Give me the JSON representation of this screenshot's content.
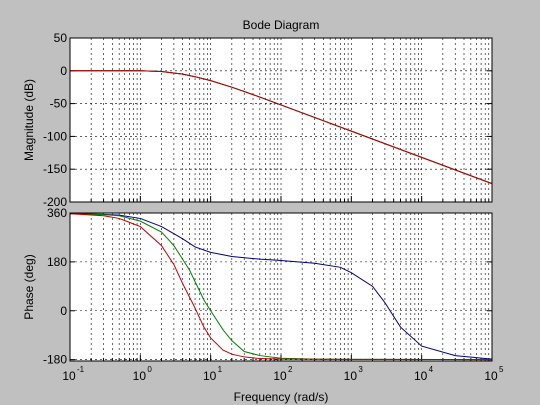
{
  "chart_data": {
    "type": "line",
    "title": "Bode Diagram",
    "xlabel": "Frequency  (rad/s)",
    "xscale": "log",
    "xlim": [
      0.1,
      100000
    ],
    "x_tick_labels": [
      {
        "base": "10",
        "exp": "-1"
      },
      {
        "base": "10",
        "exp": "0"
      },
      {
        "base": "10",
        "exp": "1"
      },
      {
        "base": "10",
        "exp": "2"
      },
      {
        "base": "10",
        "exp": "3"
      },
      {
        "base": "10",
        "exp": "4"
      },
      {
        "base": "10",
        "exp": "5"
      }
    ],
    "grid": true,
    "colors": {
      "background": "#c0c0c0",
      "axes_face": "#ffffff",
      "grid": "#000000",
      "series": [
        "#000080",
        "#008000",
        "#c00000"
      ]
    },
    "subplots": [
      {
        "ylabel": "Magnitude (dB)",
        "ylim": [
          -200,
          50
        ],
        "y_ticks": [
          50,
          0,
          -50,
          -100,
          -150,
          -200
        ],
        "series": [
          {
            "x": [
              0.1,
              0.3,
              1,
              2,
              4,
              6,
              10,
              20,
              50,
              100,
              1000,
              10000,
              100000
            ],
            "y": [
              0,
              0,
              0,
              -1,
              -5,
              -9,
              -15,
              -25,
              -40,
              -52,
              -92,
              -132,
              -172
            ]
          },
          {
            "x": [
              0.1,
              0.3,
              1,
              2,
              4,
              6,
              10,
              20,
              50,
              100,
              1000,
              10000,
              100000
            ],
            "y": [
              0,
              0,
              0,
              -1,
              -5,
              -9,
              -15,
              -25,
              -40,
              -52,
              -92,
              -132,
              -172
            ]
          },
          {
            "x": [
              0.1,
              0.3,
              1,
              2,
              4,
              6,
              10,
              20,
              50,
              100,
              1000,
              10000,
              100000
            ],
            "y": [
              0,
              0,
              0,
              -1,
              -5,
              -9,
              -15,
              -25,
              -40,
              -52,
              -92,
              -132,
              -172
            ]
          }
        ]
      },
      {
        "ylabel": "Phase (deg)",
        "ylim": [
          -185,
          360
        ],
        "y_ticks": [
          360,
          180,
          0,
          -180
        ],
        "series": [
          {
            "x": [
              0.1,
              0.3,
              0.5,
              1,
              2,
              4,
              6,
              10,
              20,
              50,
              100,
              300,
              700,
              1000,
              2000,
              3000,
              5000,
              10000,
              30000,
              100000
            ],
            "y": [
              357,
              355,
              352,
              340,
              310,
              265,
              235,
              215,
              200,
              190,
              185,
              175,
              160,
              140,
              90,
              30,
              -60,
              -130,
              -165,
              -178
            ]
          },
          {
            "x": [
              0.1,
              0.3,
              0.5,
              1,
              2,
              3,
              5,
              8,
              10,
              15,
              20,
              30,
              50,
              100,
              300,
              1000,
              100000
            ],
            "y": [
              357,
              354,
              350,
              330,
              290,
              240,
              150,
              40,
              0,
              -70,
              -110,
              -150,
              -165,
              -175,
              -178,
              -179,
              -180
            ]
          },
          {
            "x": [
              0.1,
              0.3,
              0.5,
              1,
              2,
              3,
              4,
              6,
              8,
              10,
              15,
              20,
              30,
              50,
              100,
              1000,
              100000
            ],
            "y": [
              357,
              350,
              340,
              310,
              240,
              170,
              100,
              10,
              -60,
              -100,
              -145,
              -160,
              -170,
              -176,
              -178,
              -179,
              -180
            ]
          }
        ]
      }
    ]
  }
}
